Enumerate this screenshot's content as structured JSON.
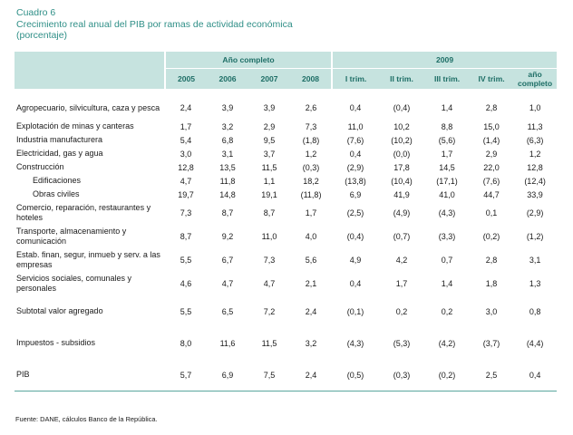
{
  "title": {
    "line1": "Cuadro 6",
    "line2": "Crecimiento real anual del PIB por ramas de actividad económica",
    "line3": "(porcentaje)"
  },
  "header": {
    "group1": "Año completo",
    "group2": "2009",
    "columns": [
      "2005",
      "2006",
      "2007",
      "2008",
      "I trim.",
      "II trim.",
      "III trim.",
      "IV trim.",
      "año completo"
    ]
  },
  "rows": [
    {
      "label": "Agropecuario, silvicultura, caza y pesca",
      "values": [
        "2,4",
        "3,9",
        "3,9",
        "2,6",
        "0,4",
        "(0,4)",
        "1,4",
        "2,8",
        "1,0"
      ]
    },
    {
      "label": "Explotación de minas y canteras",
      "values": [
        "1,7",
        "3,2",
        "2,9",
        "7,3",
        "11,0",
        "10,2",
        "8,8",
        "15,0",
        "11,3"
      ]
    },
    {
      "label": "Industria manufacturera",
      "values": [
        "5,4",
        "6,8",
        "9,5",
        "(1,8)",
        "(7,6)",
        "(10,2)",
        "(5,6)",
        "(1,4)",
        "(6,3)"
      ]
    },
    {
      "label": "Electricidad, gas y agua",
      "values": [
        "3,0",
        "3,1",
        "3,7",
        "1,2",
        "0,4",
        "(0,0)",
        "1,7",
        "2,9",
        "1,2"
      ]
    },
    {
      "label": "Construcción",
      "values": [
        "12,8",
        "13,5",
        "11,5",
        "(0,3)",
        "(2,9)",
        "17,8",
        "14,5",
        "22,0",
        "12,8"
      ]
    },
    {
      "label": "Edificaciones",
      "values": [
        "4,7",
        "11,8",
        "1,1",
        "18,2",
        "(13,8)",
        "(10,4)",
        "(17,1)",
        "(7,6)",
        "(12,4)"
      ]
    },
    {
      "label": "Obras civiles",
      "values": [
        "19,7",
        "14,8",
        "19,1",
        "(11,8)",
        "6,9",
        "41,9",
        "41,0",
        "44,7",
        "33,9"
      ]
    },
    {
      "label": "Comercio, reparación, restaurantes y hoteles",
      "values": [
        "7,3",
        "8,7",
        "8,7",
        "1,7",
        "(2,5)",
        "(4,9)",
        "(4,3)",
        "0,1",
        "(2,9)"
      ]
    },
    {
      "label": "Transporte, almacenamiento y comunicación",
      "values": [
        "8,7",
        "9,2",
        "11,0",
        "4,0",
        "(0,4)",
        "(0,7)",
        "(3,3)",
        "(0,2)",
        "(1,2)"
      ]
    },
    {
      "label": "Estab. finan, segur, inmueb y serv. a las empresas",
      "values": [
        "5,5",
        "6,7",
        "7,3",
        "5,6",
        "4,9",
        "4,2",
        "0,7",
        "2,8",
        "3,1"
      ]
    },
    {
      "label": "Servicios sociales, comunales y personales",
      "values": [
        "4,6",
        "4,7",
        "4,7",
        "2,1",
        "0,4",
        "1,7",
        "1,4",
        "1,8",
        "1,3"
      ]
    },
    {
      "label": "Subtotal valor agregado",
      "values": [
        "5,5",
        "6,5",
        "7,2",
        "2,4",
        "(0,1)",
        "0,2",
        "0,2",
        "3,0",
        "0,8"
      ]
    },
    {
      "label": "Impuestos - subsidios",
      "values": [
        "8,0",
        "11,6",
        "11,5",
        "3,2",
        "(4,3)",
        "(5,3)",
        "(4,2)",
        "(3,7)",
        "(4,4)"
      ]
    },
    {
      "label": "PIB",
      "values": [
        "5,7",
        "6,9",
        "7,5",
        "2,4",
        "(0,5)",
        "(0,3)",
        "(0,2)",
        "2,5",
        "0,4"
      ]
    }
  ],
  "source": "Fuente: DANE, cálculos Banco de la República."
}
